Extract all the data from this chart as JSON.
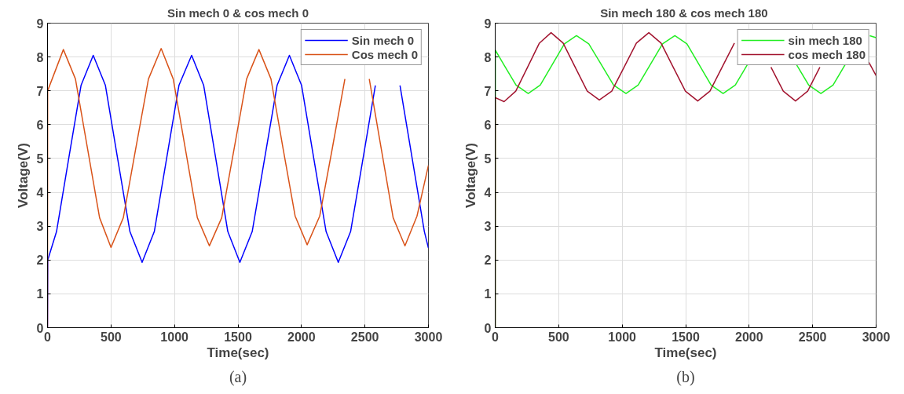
{
  "chart_data": [
    {
      "type": "line",
      "title": "Sin mech 0 & cos mech 0",
      "xlabel": "Time(sec)",
      "ylabel": "Voltage(V)",
      "annotations": [
        "(a)"
      ],
      "xlim": [
        0,
        3000
      ],
      "ylim": [
        0,
        9
      ],
      "xticks": [
        0,
        500,
        1000,
        1500,
        2000,
        2500,
        3000
      ],
      "yticks": [
        0,
        1,
        2,
        3,
        4,
        5,
        6,
        7,
        8,
        9
      ],
      "grid": true,
      "legend": "top right",
      "series": [
        {
          "name": "Sin mech 0",
          "color": "#0000ff",
          "x": [
            0,
            2,
            71,
            167,
            264,
            360,
            456,
            552,
            649,
            745,
            841,
            938,
            1035,
            1135,
            1230,
            1325,
            1420,
            1515,
            1612,
            1710,
            1808,
            1905,
            2001,
            2097,
            2194,
            2290,
            2387,
            2485,
            2582,
            2680,
            2776,
            2872,
            2968,
            3000
          ],
          "values": [
            0,
            2.0,
            2.84,
            5.0,
            7.16,
            8.05,
            7.16,
            5.0,
            2.84,
            1.93,
            2.84,
            5.0,
            7.16,
            8.05,
            7.16,
            5.0,
            2.84,
            1.93,
            2.84,
            5.0,
            7.16,
            8.05,
            7.16,
            5.0,
            2.84,
            1.93,
            2.84,
            5.0,
            7.16,
            null,
            7.16,
            5.0,
            2.84,
            2.35
          ]
        },
        {
          "name": "Cos mech 0",
          "color": "#d95319",
          "x": [
            0,
            1,
            125,
            220,
            315,
            410,
            500,
            597,
            695,
            795,
            895,
            990,
            1085,
            1180,
            1275,
            1372,
            1470,
            1568,
            1665,
            1760,
            1855,
            1950,
            2045,
            2144,
            2243,
            2342,
            2440,
            2534,
            2628,
            2722,
            2815,
            2910,
            3000
          ],
          "values": [
            0,
            7.0,
            8.22,
            7.35,
            5.3,
            3.25,
            2.37,
            3.25,
            5.3,
            7.35,
            8.25,
            7.35,
            5.3,
            3.25,
            2.42,
            3.25,
            5.3,
            7.35,
            8.22,
            7.35,
            5.3,
            3.3,
            2.45,
            3.3,
            5.3,
            7.35,
            null,
            7.35,
            5.3,
            3.25,
            2.42,
            3.3,
            4.8
          ]
        }
      ]
    },
    {
      "type": "line",
      "title": "Sin  mech 180 & cos mech 180",
      "xlabel": "Time(sec)",
      "ylabel": "Voltage(V)",
      "annotations": [
        "(b)"
      ],
      "xlim": [
        0,
        3000
      ],
      "ylim": [
        0,
        9
      ],
      "xticks": [
        0,
        500,
        1000,
        1500,
        2000,
        2500,
        3000
      ],
      "yticks": [
        0,
        1,
        2,
        3,
        4,
        5,
        6,
        7,
        8,
        9
      ],
      "grid": true,
      "legend": "top right",
      "series": [
        {
          "name": "sin mech 180",
          "color": "#22ee22",
          "x": [
            0,
            1,
            67,
            164,
            260,
            355,
            450,
            545,
            640,
            737,
            835,
            932,
            1030,
            1126,
            1222,
            1318,
            1415,
            1510,
            1605,
            1700,
            1795,
            1891,
            1987,
            2084,
            2180,
            2276,
            2372,
            2469,
            2565,
            2661,
            2757,
            2854,
            2950,
            3000
          ],
          "values": [
            0,
            8.2,
            7.78,
            7.17,
            6.92,
            7.17,
            7.78,
            8.39,
            8.63,
            8.39,
            7.78,
            7.17,
            6.92,
            7.17,
            7.78,
            8.39,
            8.63,
            8.39,
            7.78,
            7.17,
            6.92,
            7.17,
            7.78,
            null,
            null,
            null,
            7.78,
            7.17,
            6.92,
            7.17,
            7.78,
            null,
            8.63,
            8.57
          ]
        },
        {
          "name": "cos mech 180",
          "color": "#a2142f",
          "x": [
            0,
            1,
            70,
            162,
            255,
            348,
            440,
            535,
            630,
            725,
            820,
            918,
            1015,
            1112,
            1210,
            1306,
            1402,
            1498,
            1595,
            1691,
            1787,
            1884,
            1980,
            2076,
            2172,
            2269,
            2365,
            2461,
            2557,
            2654,
            2750,
            2846,
            2942,
            3000
          ],
          "values": [
            0,
            6.8,
            6.68,
            6.99,
            7.7,
            8.41,
            8.72,
            8.41,
            7.7,
            6.99,
            6.73,
            6.99,
            7.7,
            8.41,
            8.72,
            8.41,
            7.7,
            6.99,
            6.7,
            6.99,
            7.7,
            8.41,
            null,
            null,
            7.7,
            6.99,
            6.7,
            6.99,
            7.7,
            null,
            null,
            null,
            7.85,
            7.45
          ]
        }
      ]
    }
  ]
}
